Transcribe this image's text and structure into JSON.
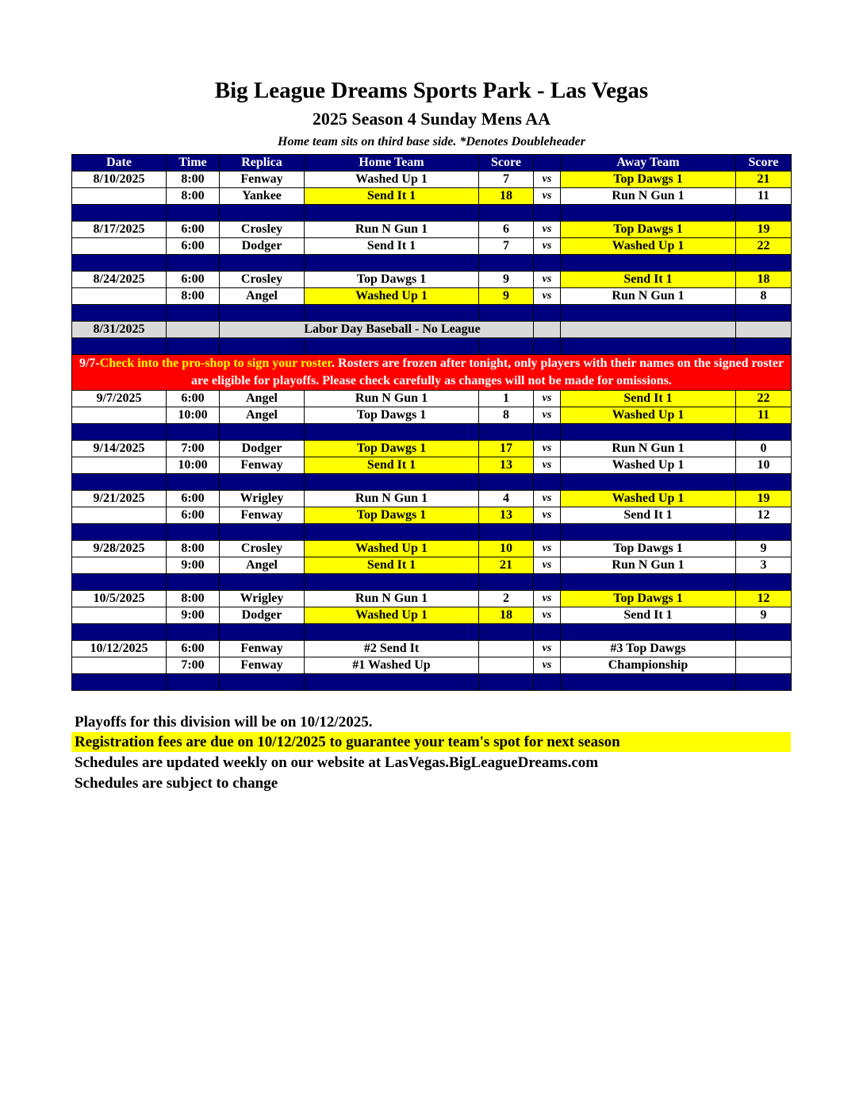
{
  "header": {
    "title": "Big League Dreams Sports Park - Las Vegas",
    "subtitle": "2025 Season 4 Sunday Mens AA",
    "note": "Home team sits on third base side.  *Denotes Doubleheader"
  },
  "colors": {
    "navy": "#00007f",
    "winner": "#ffff00",
    "banner": "#ff0000",
    "closed": "#d9d9d9"
  },
  "columns": [
    "Date",
    "Time",
    "Replica",
    "Home Team",
    "Score",
    "",
    "Away Team",
    "Score"
  ],
  "vs_label": "vs",
  "rows": [
    {
      "type": "game",
      "date": "8/10/2025",
      "time": "8:00",
      "replica": "Fenway",
      "home": "Washed Up 1",
      "home_score": "7",
      "away": "Top Dawgs 1",
      "away_score": "21",
      "winner": "away"
    },
    {
      "type": "game",
      "date": "",
      "time": "8:00",
      "replica": "Yankee",
      "home": "Send It 1",
      "home_score": "18",
      "away": "Run N Gun 1",
      "away_score": "11",
      "winner": "home"
    },
    {
      "type": "spacer"
    },
    {
      "type": "game",
      "date": "8/17/2025",
      "time": "6:00",
      "replica": "Crosley",
      "home": "Run N Gun 1",
      "home_score": "6",
      "away": "Top Dawgs 1",
      "away_score": "19",
      "winner": "away"
    },
    {
      "type": "game",
      "date": "",
      "time": "6:00",
      "replica": "Dodger",
      "home": "Send It 1",
      "home_score": "7",
      "away": "Washed Up 1",
      "away_score": "22",
      "winner": "away"
    },
    {
      "type": "spacer"
    },
    {
      "type": "game",
      "date": "8/24/2025",
      "time": "6:00",
      "replica": "Crosley",
      "home": "Top Dawgs 1",
      "home_score": "9",
      "away": "Send It 1",
      "away_score": "18",
      "winner": "away"
    },
    {
      "type": "game",
      "date": "",
      "time": "8:00",
      "replica": "Angel",
      "home": "Washed Up 1",
      "home_score": "9",
      "away": "Run N Gun 1",
      "away_score": "8",
      "winner": "home"
    },
    {
      "type": "spacer"
    },
    {
      "type": "labor",
      "date": "8/31/2025",
      "text": "Labor Day Baseball - No League"
    },
    {
      "type": "spacer"
    },
    {
      "type": "banner",
      "prefix": "9/7-",
      "highlight": "Check into the pro-shop to sign your roster",
      "rest": ". Rosters are frozen after tonight, only players with their names on the signed roster are eligible for playoffs. Please check carefully as changes will not be made for omissions."
    },
    {
      "type": "game",
      "date": "9/7/2025",
      "time": "6:00",
      "replica": "Angel",
      "home": "Run N Gun 1",
      "home_score": "1",
      "away": "Send It 1",
      "away_score": "22",
      "winner": "away"
    },
    {
      "type": "game",
      "date": "",
      "time": "10:00",
      "replica": "Angel",
      "home": "Top Dawgs 1",
      "home_score": "8",
      "away": "Washed Up 1",
      "away_score": "11",
      "winner": "away"
    },
    {
      "type": "spacer"
    },
    {
      "type": "game",
      "date": "9/14/2025",
      "time": "7:00",
      "replica": "Dodger",
      "home": "Top Dawgs 1",
      "home_score": "17",
      "away": "Run N Gun 1",
      "away_score": "0",
      "winner": "home"
    },
    {
      "type": "game",
      "date": "",
      "time": "10:00",
      "replica": "Fenway",
      "home": "Send It 1",
      "home_score": "13",
      "away": "Washed Up 1",
      "away_score": "10",
      "winner": "home"
    },
    {
      "type": "spacer"
    },
    {
      "type": "game",
      "date": "9/21/2025",
      "time": "6:00",
      "replica": "Wrigley",
      "home": "Run N Gun 1",
      "home_score": "4",
      "away": "Washed Up 1",
      "away_score": "19",
      "winner": "away"
    },
    {
      "type": "game",
      "date": "",
      "time": "6:00",
      "replica": "Fenway",
      "home": "Top Dawgs 1",
      "home_score": "13",
      "away": "Send It 1",
      "away_score": "12",
      "winner": "home"
    },
    {
      "type": "spacer"
    },
    {
      "type": "game",
      "date": "9/28/2025",
      "time": "8:00",
      "replica": "Crosley",
      "home": "Washed Up 1",
      "home_score": "10",
      "away": "Top Dawgs 1",
      "away_score": "9",
      "winner": "home"
    },
    {
      "type": "game",
      "date": "",
      "time": "9:00",
      "replica": "Angel",
      "home": "Send It 1",
      "home_score": "21",
      "away": "Run N Gun 1",
      "away_score": "3",
      "winner": "home"
    },
    {
      "type": "spacer"
    },
    {
      "type": "game",
      "date": "10/5/2025",
      "time": "8:00",
      "replica": "Wrigley",
      "home": "Run N Gun 1",
      "home_score": "2",
      "away": "Top Dawgs 1",
      "away_score": "12",
      "winner": "away"
    },
    {
      "type": "game",
      "date": "",
      "time": "9:00",
      "replica": "Dodger",
      "home": "Washed Up 1",
      "home_score": "18",
      "away": "Send It 1",
      "away_score": "9",
      "winner": "home"
    },
    {
      "type": "spacer"
    },
    {
      "type": "game",
      "date": "10/12/2025",
      "time": "6:00",
      "replica": "Fenway",
      "home": "#2 Send It",
      "home_score": "",
      "away": "#3 Top Dawgs",
      "away_score": "",
      "winner": null
    },
    {
      "type": "game",
      "date": "",
      "time": "7:00",
      "replica": "Fenway",
      "home": "#1 Washed Up",
      "home_score": "",
      "away": "Championship",
      "away_score": "",
      "winner": null
    },
    {
      "type": "spacer"
    }
  ],
  "footer": [
    "Playoffs for this division will be on 10/12/2025.",
    "Registration fees are due on 10/12/2025 to guarantee your team's spot for next season",
    "Schedules are updated weekly on our website at LasVegas.BigLeagueDreams.com",
    "Schedules are subject to change"
  ]
}
